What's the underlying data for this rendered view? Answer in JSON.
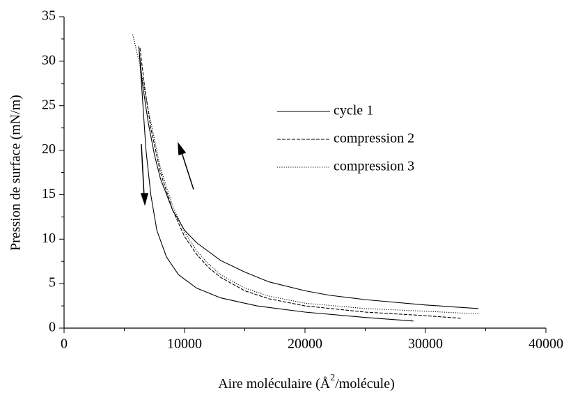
{
  "chart_data": {
    "type": "line",
    "xlabel": {
      "before": "Aire moléculaire (Å",
      "sup": "2",
      "after": "/molécule)"
    },
    "ylabel": "Pression de surface (mN/m)",
    "xlim": [
      0,
      40000
    ],
    "xticks": [
      0,
      10000,
      20000,
      30000,
      40000
    ],
    "ylim": [
      0,
      35
    ],
    "yticks": [
      0,
      5,
      10,
      15,
      20,
      25,
      30,
      35
    ],
    "series": [
      {
        "name": "cycle 1",
        "color": "#000000",
        "style": "solid",
        "x": [
          34400,
          30000,
          25000,
          22000,
          20000,
          17000,
          15000,
          13000,
          11000,
          10000,
          9000,
          8000,
          7500,
          7000,
          6500,
          6200,
          6300,
          6500,
          6800,
          7200,
          7700,
          8500,
          9500,
          11000,
          13000,
          16000,
          20000,
          25000,
          29000
        ],
        "values": [
          2.2,
          2.6,
          3.2,
          3.7,
          4.2,
          5.2,
          6.3,
          7.6,
          9.6,
          11,
          13.3,
          16.8,
          19.5,
          23,
          27.5,
          31.7,
          30,
          26,
          20,
          15,
          11,
          8,
          6,
          4.5,
          3.4,
          2.5,
          1.8,
          1.2,
          0.8
        ]
      },
      {
        "name": "compression 2",
        "color": "#000000",
        "style": "dashed",
        "x": [
          6300,
          6700,
          7200,
          8000,
          9000,
          10000,
          11000,
          12000,
          13000,
          15000,
          17000,
          20000,
          25000,
          30000,
          33000
        ],
        "values": [
          31.5,
          27,
          22.5,
          17.5,
          13.3,
          10.3,
          8.3,
          6.8,
          5.7,
          4.2,
          3.3,
          2.5,
          1.8,
          1.4,
          1.1
        ]
      },
      {
        "name": "compression 3",
        "color": "#000000",
        "style": "dotted",
        "x": [
          5700,
          6300,
          7000,
          8000,
          9000,
          10000,
          11000,
          12000,
          13000,
          15000,
          17000,
          20000,
          25000,
          30000,
          34400
        ],
        "values": [
          33,
          29.5,
          24.5,
          18,
          13.8,
          10.8,
          8.7,
          7.2,
          6,
          4.5,
          3.6,
          2.8,
          2.2,
          1.9,
          1.6
        ]
      }
    ]
  }
}
